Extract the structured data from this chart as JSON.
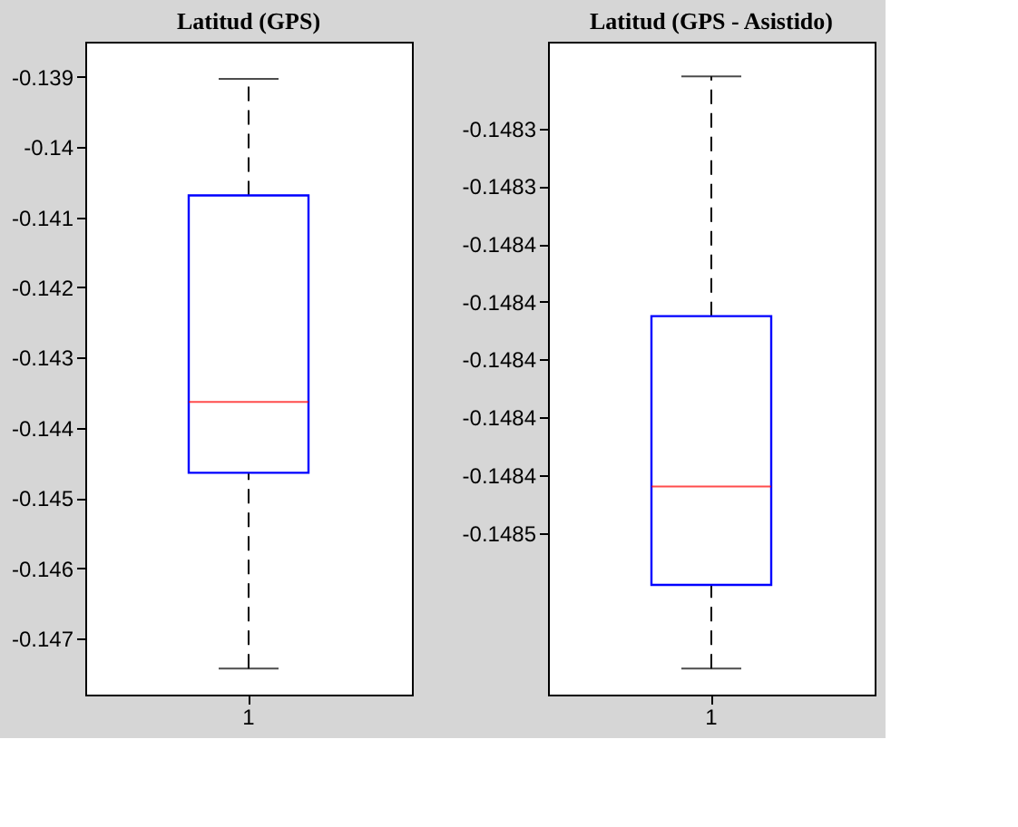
{
  "chart_data": [
    {
      "type": "box",
      "title": "Latitud (GPS)",
      "categories": [
        "1"
      ],
      "boxes": [
        {
          "low": -0.14743,
          "q1": -0.14464,
          "median": -0.14363,
          "q3": -0.14069,
          "high": -0.13903
        }
      ],
      "ylim": [
        -0.1478,
        -0.1385
      ],
      "yticks": [
        -0.139,
        -0.14,
        -0.141,
        -0.142,
        -0.143,
        -0.144,
        -0.145,
        -0.146,
        -0.147
      ],
      "grid": false
    },
    {
      "type": "box",
      "title": "Latitud (GPS - Asistido)",
      "categories": [
        "1"
      ],
      "boxes": [
        {
          "low": -0.148507,
          "q1": -0.148478,
          "median": -0.148444,
          "q3": -0.148385,
          "high": -0.148302
        }
      ],
      "ylim": [
        -0.148516,
        -0.14829
      ],
      "yticks": [
        {
          "value": -0.14832,
          "label": "-0.1483"
        },
        {
          "value": -0.14834,
          "label": "-0.1483"
        },
        {
          "value": -0.14836,
          "label": "-0.1484"
        },
        {
          "value": -0.14838,
          "label": "-0.1484"
        },
        {
          "value": -0.1484,
          "label": "-0.1484"
        },
        {
          "value": -0.14842,
          "label": "-0.1484"
        },
        {
          "value": -0.14844,
          "label": "-0.1484"
        },
        {
          "value": -0.14846,
          "label": "-0.1485"
        }
      ],
      "grid": false
    }
  ]
}
